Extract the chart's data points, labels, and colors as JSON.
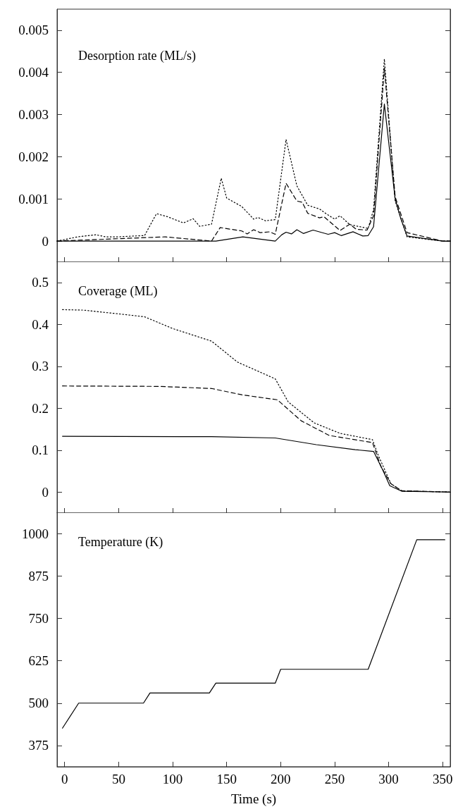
{
  "chart_data": [
    {
      "type": "line",
      "title": "Desorption rate (ML/s)",
      "xlim": [
        -7,
        357
      ],
      "xticks": [
        0,
        50,
        100,
        150,
        200,
        250,
        300,
        350
      ],
      "ylim": [
        -0.0005,
        0.0055
      ],
      "yticks": [
        0,
        0.001,
        0.002,
        0.003,
        0.004,
        0.005
      ],
      "tick_labels": "y",
      "series": [
        {
          "color": "#000000",
          "line_style": "solid",
          "x": [
            -7,
            140,
            165,
            195,
            201,
            205,
            210,
            215,
            221,
            230,
            244,
            250,
            256,
            267,
            276,
            281,
            286,
            296,
            306,
            311,
            317,
            350,
            357
          ],
          "values": [
            0,
            0,
            0.0001,
            0,
            0.00015,
            0.00021,
            0.00017,
            0.00027,
            0.00018,
            0.00026,
            0.00016,
            0.0002,
            0.00013,
            0.00022,
            0.00012,
            0.00013,
            0.00034,
            0.00325,
            0.001,
            0.00055,
            0.00012,
            0,
            0
          ]
        },
        {
          "color": "#000000",
          "line_style": "dashed",
          "x": [
            -7,
            93,
            136,
            144,
            164,
            169,
            175,
            181,
            190,
            195,
            205,
            215,
            220,
            225,
            236,
            240,
            255,
            264,
            270,
            280,
            286,
            296,
            306,
            317,
            350,
            357
          ],
          "values": [
            0,
            0.0001,
            0,
            0.00032,
            0.00024,
            0.00017,
            0.00027,
            0.0002,
            0.00022,
            0.00016,
            0.00137,
            0.00095,
            0.00092,
            0.00066,
            0.00055,
            0.00058,
            0.00025,
            0.0004,
            0.00028,
            0.00026,
            0.0006,
            0.0041,
            0.00105,
            0.0002,
            0,
            0
          ]
        },
        {
          "color": "#000000",
          "line_style": "dotted",
          "x": [
            -7,
            12,
            29,
            38,
            50,
            64,
            74,
            85,
            95,
            110,
            119,
            125,
            136,
            145,
            150,
            164,
            175,
            179,
            186,
            195,
            205,
            215,
            225,
            236,
            242,
            250,
            255,
            264,
            281,
            286,
            296,
            306,
            317,
            350,
            357
          ],
          "values": [
            0,
            0.0001,
            0.00015,
            0.0001,
            0.0001,
            0.00012,
            0.00013,
            0.00065,
            0.00058,
            0.00043,
            0.00053,
            0.00035,
            0.0004,
            0.00149,
            0.00102,
            0.00082,
            0.00052,
            0.00056,
            0.00048,
            0.00051,
            0.00241,
            0.00131,
            0.00085,
            0.00076,
            0.00065,
            0.00052,
            0.0006,
            0.00039,
            0.0003,
            0.00075,
            0.00432,
            0.00095,
            0.0001,
            0,
            0
          ]
        }
      ]
    },
    {
      "type": "line",
      "title": "Coverage (ML)",
      "xlim": [
        -7,
        357
      ],
      "xticks": [
        0,
        50,
        100,
        150,
        200,
        250,
        300,
        350
      ],
      "ylim": [
        -0.05,
        0.55
      ],
      "yticks": [
        0,
        0.1,
        0.2,
        0.3,
        0.4,
        0.5
      ],
      "tick_labels": "y",
      "series": [
        {
          "color": "#000000",
          "line_style": "solid",
          "x": [
            -2,
            136,
            195,
            233,
            269,
            286,
            295,
            301,
            312,
            357
          ],
          "values": [
            0.133,
            0.132,
            0.129,
            0.113,
            0.101,
            0.097,
            0.05,
            0.015,
            0.002,
            0
          ]
        },
        {
          "color": "#000000",
          "line_style": "dashed",
          "x": [
            -2,
            88,
            136,
            164,
            197,
            219,
            245,
            285,
            293,
            302,
            312,
            357
          ],
          "values": [
            0.253,
            0.252,
            0.247,
            0.232,
            0.22,
            0.17,
            0.135,
            0.118,
            0.06,
            0.02,
            0.003,
            0
          ]
        },
        {
          "color": "#000000",
          "line_style": "dotted",
          "x": [
            -2,
            17,
            50,
            74,
            100,
            136,
            160,
            195,
            207,
            231,
            255,
            285,
            290,
            302,
            312,
            357
          ],
          "values": [
            0.435,
            0.434,
            0.425,
            0.418,
            0.39,
            0.36,
            0.31,
            0.27,
            0.215,
            0.165,
            0.14,
            0.125,
            0.09,
            0.02,
            0.003,
            0
          ]
        }
      ]
    },
    {
      "type": "line",
      "title": "Temperature (K)",
      "xlabel": "Time (s)",
      "xlim": [
        -7,
        357
      ],
      "xticks": [
        0,
        50,
        100,
        150,
        200,
        250,
        300,
        350
      ],
      "ylim": [
        312,
        1064
      ],
      "yticks": [
        375,
        500,
        625,
        750,
        875,
        1000
      ],
      "series": [
        {
          "color": "#000000",
          "line_style": "solid",
          "x": [
            -2,
            13,
            73,
            79,
            134,
            140,
            195,
            200,
            281,
            326,
            352
          ],
          "values": [
            426,
            500,
            500,
            530,
            530,
            559,
            559,
            600,
            600,
            983,
            983
          ]
        }
      ]
    }
  ]
}
